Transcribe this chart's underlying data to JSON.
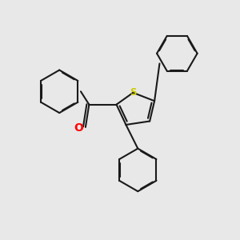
{
  "background_color": "#e8e8e8",
  "bond_color": "#1a1a1a",
  "oxygen_color": "#ff0000",
  "sulfur_color": "#cccc00",
  "bond_width": 1.5,
  "figsize": [
    3.0,
    3.0
  ],
  "dpi": 100
}
